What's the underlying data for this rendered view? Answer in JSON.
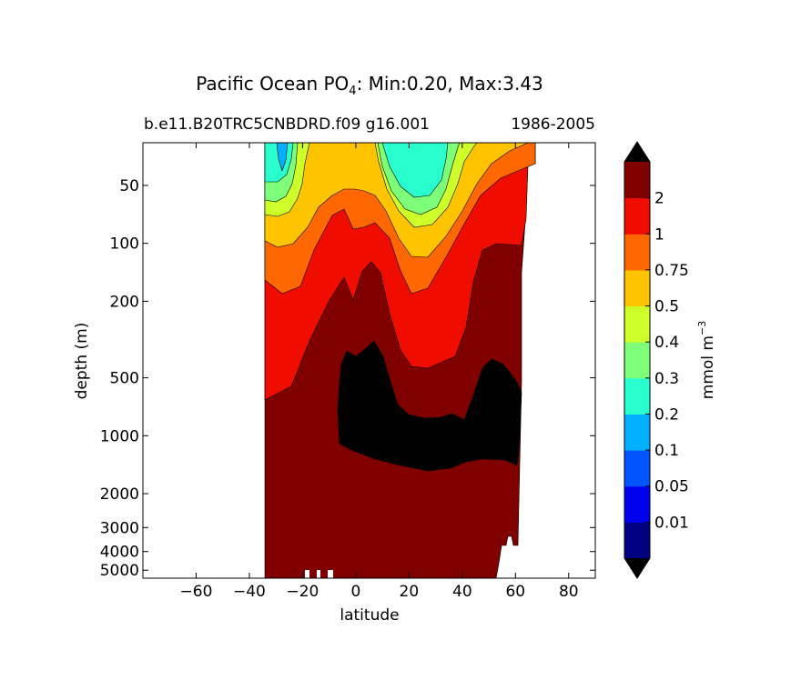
{
  "title": {
    "prefix": "Pacific Ocean PO",
    "subscript": "4",
    "suffix": ": Min:0.20, Max:3.43"
  },
  "subtitle_left": "b.e11.B20TRC5CNBDRD.f09 g16.001",
  "subtitle_right": "1986-2005",
  "chart_data": {
    "type": "contour",
    "title": "Pacific Ocean PO4: Min:0.20, Max:3.43",
    "xlabel": "latitude",
    "ylabel": "depth (m)",
    "xlim": [
      -80,
      90
    ],
    "ylim": [
      5500,
      30
    ],
    "y_scale": "log",
    "y_inverted": true,
    "x_ticks": [
      -60,
      -40,
      -20,
      0,
      20,
      40,
      60,
      80
    ],
    "x_tick_labels": [
      "−60",
      "−40",
      "−20",
      "0",
      "20",
      "40",
      "60",
      "80"
    ],
    "y_ticks": [
      50,
      100,
      200,
      500,
      1000,
      2000,
      3000,
      4000,
      5000
    ],
    "y_tick_labels": [
      "50",
      "100",
      "200",
      "500",
      "1000",
      "2000",
      "3000",
      "4000",
      "5000"
    ],
    "data_extent": {
      "lat_min": -34,
      "lat_max": 67
    },
    "min_value": 0.2,
    "max_value": 3.43,
    "colorbar": {
      "label": "mmol m",
      "label_sup": "−3",
      "extend": "both",
      "levels": [
        "0.01",
        "0.05",
        "0.1",
        "0.2",
        "0.3",
        "0.4",
        "0.5",
        "0.75",
        "1",
        "2"
      ],
      "colors": [
        "#000080",
        "#0000ee",
        "#0055ff",
        "#00b0ff",
        "#29ffce",
        "#7dff7a",
        "#ceff29",
        "#ffc400",
        "#ff6800",
        "#f10c00",
        "#800000"
      ],
      "over_color": "#000000",
      "under_color": "#000000"
    }
  }
}
